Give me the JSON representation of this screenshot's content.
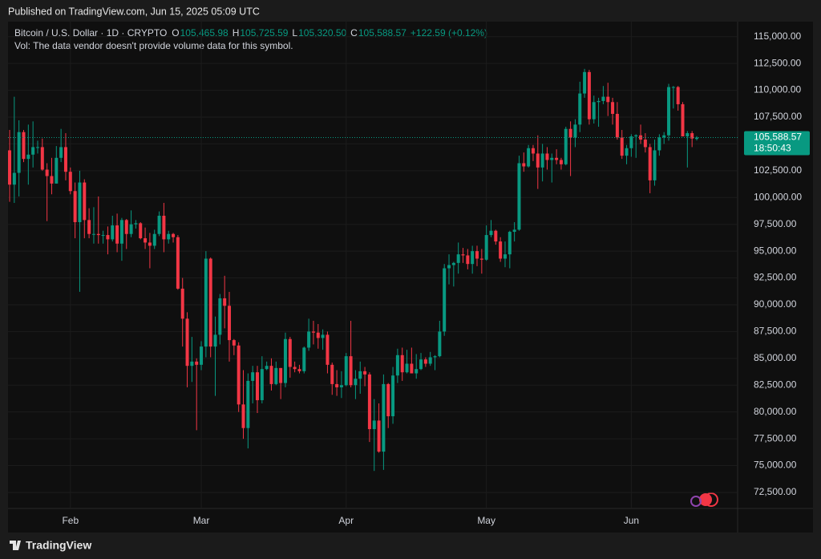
{
  "header": {
    "published": "Published on TradingView.com, Jun 15, 2025 05:09 UTC"
  },
  "footer": {
    "brand": "TradingView"
  },
  "chart_data": {
    "type": "candlestick",
    "title": "Bitcoin / U.S. Dollar · 1D · CRYPTO",
    "subtitle": "Vol: The data vendor doesn't provide volume data for this symbol.",
    "up_color": "#089981",
    "down_color": "#f23645",
    "grid": true,
    "legend_values": [
      {
        "key": "O",
        "value": 105465.98,
        "label": "105,465.98"
      },
      {
        "key": "H",
        "value": 105725.59,
        "label": "105,725.59"
      },
      {
        "key": "L",
        "value": 105320.5,
        "label": "105,320.50"
      },
      {
        "key": "C",
        "value": 105588.57,
        "label": "105,588.57"
      }
    ],
    "change": {
      "value": 122.59,
      "percent": 0.12,
      "label": "+122.59 (+0.12%)"
    },
    "last_price": {
      "value": 105588.57,
      "label": "105,588.57",
      "countdown": "18:50:43"
    },
    "categories": [
      null,
      null,
      null,
      null,
      null,
      null,
      null,
      null,
      null,
      null,
      null,
      null,
      null,
      "Feb",
      null,
      null,
      null,
      null,
      null,
      null,
      null,
      null,
      null,
      null,
      null,
      null,
      null,
      null,
      null,
      null,
      null,
      null,
      null,
      null,
      null,
      null,
      null,
      null,
      null,
      null,
      null,
      "Mar",
      null,
      null,
      null,
      null,
      null,
      null,
      null,
      null,
      null,
      null,
      null,
      null,
      null,
      null,
      null,
      null,
      null,
      null,
      null,
      null,
      null,
      null,
      null,
      null,
      null,
      null,
      null,
      null,
      null,
      null,
      "Apr",
      null,
      null,
      null,
      null,
      null,
      null,
      null,
      null,
      null,
      null,
      null,
      null,
      null,
      null,
      null,
      null,
      null,
      null,
      null,
      null,
      null,
      null,
      null,
      null,
      null,
      null,
      null,
      null,
      null,
      "May",
      null,
      null,
      null,
      null,
      null,
      null,
      null,
      null,
      null,
      null,
      null,
      null,
      null,
      null,
      null,
      null,
      null,
      null,
      null,
      null,
      null,
      null,
      null,
      null,
      null,
      null,
      null,
      null,
      null,
      null,
      "Jun",
      null,
      null,
      null,
      null,
      null,
      null,
      null,
      null,
      null,
      null,
      null,
      null,
      null,
      null
    ],
    "open": [
      104400,
      101200,
      102300,
      106100,
      103600,
      104000,
      104700,
      104700,
      102600,
      102000,
      101300,
      103700,
      104700,
      102400,
      100600,
      97700,
      101400,
      97900,
      96600,
      96600,
      96500,
      96500,
      96100,
      97400,
      95700,
      97900,
      96600,
      97500,
      97600,
      96200,
      95800,
      95500,
      96600,
      98300,
      96100,
      96600,
      96300,
      91500,
      88700,
      84300,
      84700,
      84400,
      86100,
      94300,
      86100,
      87200,
      90600,
      89900,
      86700,
      86200,
      80700,
      78500,
      82900,
      83700,
      81100,
      84000,
      84300,
      82600,
      84100,
      82700,
      86800,
      84200,
      84000,
      83800,
      86000,
      87500,
      87400,
      86900,
      87200,
      84400,
      82600,
      82300,
      82500,
      85200,
      82500,
      83100,
      83800,
      83500,
      78400,
      79200,
      76300,
      82600,
      79600,
      83400,
      85300,
      83700,
      84500,
      83600,
      84000,
      84900,
      84500,
      85100,
      85200,
      87500,
      93400,
      93700,
      93900,
      94700,
      94600,
      93800,
      95000,
      94300,
      94200,
      96500,
      96900,
      95900,
      94300,
      94700,
      96800,
      97000,
      103200,
      102900,
      104600,
      104100,
      102800,
      104100,
      103500,
      103700,
      103500,
      103100,
      106400,
      105600,
      106800,
      109700,
      111700,
      107300,
      108900,
      109000,
      109400,
      108900,
      107800,
      105600,
      103900,
      104600,
      105700,
      105800,
      105400,
      104700,
      101600,
      104400,
      105600,
      105800,
      110300,
      110300,
      108700,
      105700,
      106000,
      105465.98
    ],
    "high": [
      106300,
      109400,
      107200,
      106300,
      106800,
      107100,
      105300,
      105500,
      103200,
      103700,
      104800,
      106400,
      106000,
      102800,
      101400,
      102500,
      101700,
      99000,
      99100,
      100100,
      96900,
      97300,
      98300,
      98500,
      98100,
      98000,
      98800,
      97900,
      97700,
      97200,
      96700,
      97000,
      98700,
      99500,
      96900,
      96700,
      96500,
      92500,
      89300,
      87000,
      85000,
      86600,
      95000,
      94400,
      88900,
      91000,
      92700,
      91200,
      86800,
      86500,
      83900,
      83600,
      84300,
      84300,
      85200,
      84700,
      85000,
      84700,
      84100,
      87400,
      87000,
      84700,
      84400,
      86100,
      88700,
      88500,
      88200,
      87700,
      87500,
      84600,
      83900,
      83800,
      85500,
      88500,
      83900,
      84700,
      84200,
      83700,
      81200,
      80800,
      83500,
      82700,
      84200,
      85900,
      86000,
      85800,
      86000,
      85400,
      85500,
      85100,
      85600,
      85300,
      88500,
      93800,
      94700,
      94000,
      95800,
      95300,
      95200,
      95500,
      95500,
      95200,
      97400,
      97900,
      97000,
      96300,
      95900,
      96900,
      97700,
      103900,
      104200,
      104900,
      104900,
      105800,
      105000,
      104700,
      104100,
      104500,
      103700,
      106600,
      107100,
      107300,
      110800,
      112000,
      111900,
      109500,
      109300,
      110400,
      110700,
      109300,
      108900,
      106300,
      104900,
      105900,
      105900,
      106800,
      106000,
      105000,
      105400,
      105900,
      106100,
      110600,
      110400,
      110400,
      108900,
      106200,
      106200,
      105725.59
    ],
    "low": [
      99600,
      99500,
      100100,
      103300,
      101200,
      102800,
      104100,
      102500,
      97800,
      100300,
      101300,
      103300,
      101600,
      100300,
      96200,
      91200,
      96200,
      96200,
      95700,
      95700,
      95700,
      94700,
      95900,
      94900,
      94100,
      95200,
      96300,
      97100,
      96100,
      95200,
      93400,
      95200,
      96400,
      94900,
      95700,
      95800,
      91400,
      86100,
      82300,
      82800,
      78300,
      83900,
      85100,
      85100,
      81500,
      86300,
      87800,
      84700,
      85300,
      80000,
      77500,
      76600,
      80800,
      79900,
      80800,
      83900,
      82000,
      82500,
      81200,
      82300,
      83200,
      83700,
      83600,
      83600,
      85700,
      86300,
      85900,
      85800,
      83600,
      81600,
      81500,
      81300,
      82400,
      82300,
      81200,
      81700,
      82400,
      77200,
      74500,
      76200,
      74600,
      78500,
      78900,
      82700,
      82900,
      83600,
      83600,
      83100,
      83900,
      84200,
      84300,
      83900,
      85100,
      87100,
      91900,
      91700,
      92900,
      93900,
      93300,
      92900,
      93600,
      92900,
      94100,
      96300,
      95600,
      94000,
      93500,
      93400,
      95900,
      96900,
      102400,
      102800,
      103400,
      100800,
      101500,
      102600,
      101400,
      103100,
      102600,
      103000,
      102000,
      104700,
      106100,
      109300,
      106800,
      106900,
      106600,
      108700,
      107600,
      106800,
      105400,
      103600,
      103100,
      103800,
      103700,
      105000,
      104200,
      100400,
      101100,
      103900,
      105000,
      105300,
      108300,
      108100,
      105700,
      102800,
      104700,
      105320.5
    ],
    "close": [
      101200,
      102300,
      106100,
      103600,
      104000,
      104700,
      104700,
      102600,
      102000,
      101300,
      103700,
      104700,
      102400,
      100600,
      97700,
      101400,
      97900,
      96600,
      96600,
      96500,
      96500,
      96100,
      97400,
      95700,
      97900,
      96600,
      97500,
      97600,
      96200,
      95800,
      95500,
      96600,
      98300,
      96100,
      96600,
      96300,
      91500,
      88700,
      84300,
      84700,
      84400,
      86100,
      94300,
      86100,
      87200,
      90600,
      89900,
      86700,
      86200,
      80700,
      78500,
      82900,
      83700,
      81100,
      84000,
      84300,
      82600,
      84100,
      82700,
      86800,
      84200,
      84000,
      83800,
      86000,
      87500,
      87400,
      86900,
      87200,
      84400,
      82600,
      82300,
      82500,
      85200,
      82500,
      83100,
      83800,
      83500,
      78400,
      79200,
      76300,
      82600,
      79600,
      83400,
      85300,
      83700,
      84500,
      83600,
      84000,
      84900,
      84500,
      85100,
      85200,
      87500,
      93400,
      93700,
      93900,
      94700,
      94600,
      93800,
      95000,
      94300,
      94200,
      96500,
      96900,
      95900,
      94300,
      94700,
      96800,
      97000,
      103200,
      102900,
      104600,
      104100,
      102800,
      104100,
      103500,
      103700,
      103500,
      103100,
      106400,
      105600,
      106800,
      109700,
      111700,
      107300,
      108900,
      109000,
      109400,
      108900,
      107800,
      105600,
      103900,
      104600,
      105700,
      105800,
      105400,
      104700,
      101600,
      104400,
      105600,
      105800,
      110300,
      110300,
      108700,
      105700,
      106000,
      105500,
      105588.57
    ],
    "ylim": [
      71000,
      116400
    ],
    "yticks": [
      {
        "value": 72500,
        "label": "72,500.00"
      },
      {
        "value": 75000,
        "label": "75,000.00"
      },
      {
        "value": 77500,
        "label": "77,500.00"
      },
      {
        "value": 80000,
        "label": "80,000.00"
      },
      {
        "value": 82500,
        "label": "82,500.00"
      },
      {
        "value": 85000,
        "label": "85,000.00"
      },
      {
        "value": 87500,
        "label": "87,500.00"
      },
      {
        "value": 90000,
        "label": "90,000.00"
      },
      {
        "value": 92500,
        "label": "92,500.00"
      },
      {
        "value": 95000,
        "label": "95,000.00"
      },
      {
        "value": 97500,
        "label": "97,500.00"
      },
      {
        "value": 100000,
        "label": "100,000.00"
      },
      {
        "value": 102500,
        "label": "102,500.00"
      },
      {
        "value": 105000,
        "label": "105,000.00"
      },
      {
        "value": 107500,
        "label": "107,500.00"
      },
      {
        "value": 110000,
        "label": "110,000.00"
      },
      {
        "value": 112500,
        "label": "112,500.00"
      },
      {
        "value": 115000,
        "label": "115,000.00"
      }
    ]
  }
}
